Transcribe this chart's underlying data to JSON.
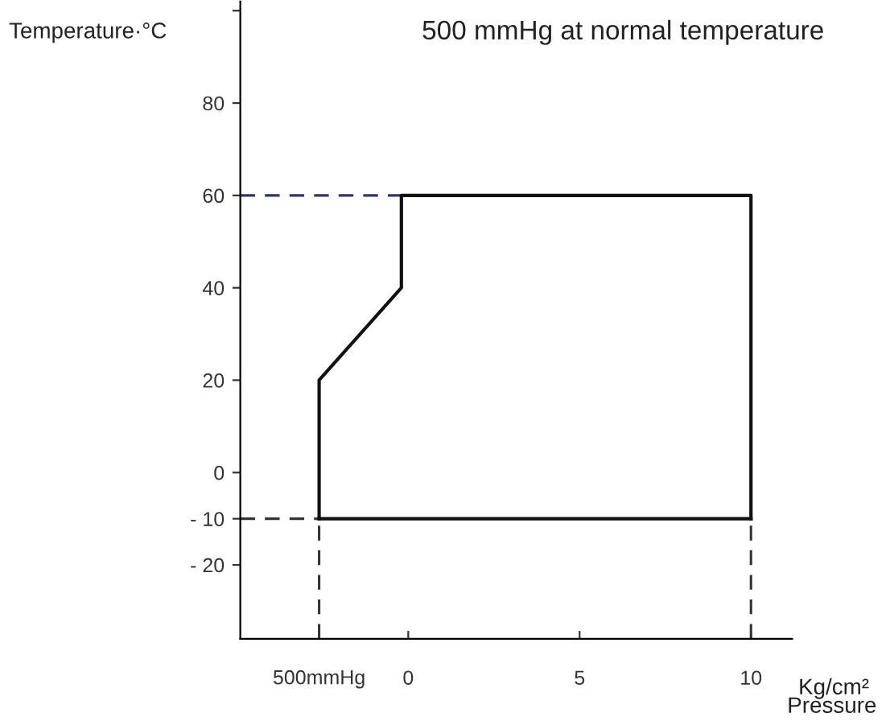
{
  "chart_data": {
    "type": "line",
    "ylabel": "Temperature·°C",
    "xlabel": "Pressure",
    "annotations": [
      "500 mmHg at normal temperature",
      "Kg/cm²"
    ],
    "series": [
      {
        "color": "#111111",
        "x": [
          -2.6,
          -2.6,
          -0.2,
          -0.2,
          10,
          10
        ],
        "values": [
          -10,
          20,
          40,
          60,
          60,
          -10
        ]
      },
      {
        "color": "#111111",
        "x": [
          -2.6,
          10
        ],
        "values": [
          -10,
          -10
        ]
      }
    ],
    "xlim": [
      -4.9,
      11.2
    ],
    "xticks": [
      0,
      5,
      10
    ],
    "ylim": [
      -36,
      102
    ],
    "yticks": [
      {
        "value": -20,
        "label": "- 20"
      },
      {
        "value": -10,
        "label": "- 10"
      },
      0,
      20,
      40,
      60,
      80,
      {
        "value": 100,
        "label": null
      }
    ],
    "ref_lines": [
      {
        "axis": "y",
        "value": 60,
        "line_style": "dashed",
        "color": "#333366"
      },
      {
        "axis": "y",
        "value": -10,
        "line_style": "dashed",
        "color": "#333333"
      },
      {
        "axis": "x",
        "value": -2.6,
        "label": "500mmHg",
        "line_style": "dashed",
        "color": "#333333"
      },
      {
        "axis": "x",
        "value": 10,
        "line_style": "dashed",
        "color": "#333333"
      }
    ],
    "grid": false,
    "legend": false,
    "marker": "none",
    "line_style": "solid"
  }
}
